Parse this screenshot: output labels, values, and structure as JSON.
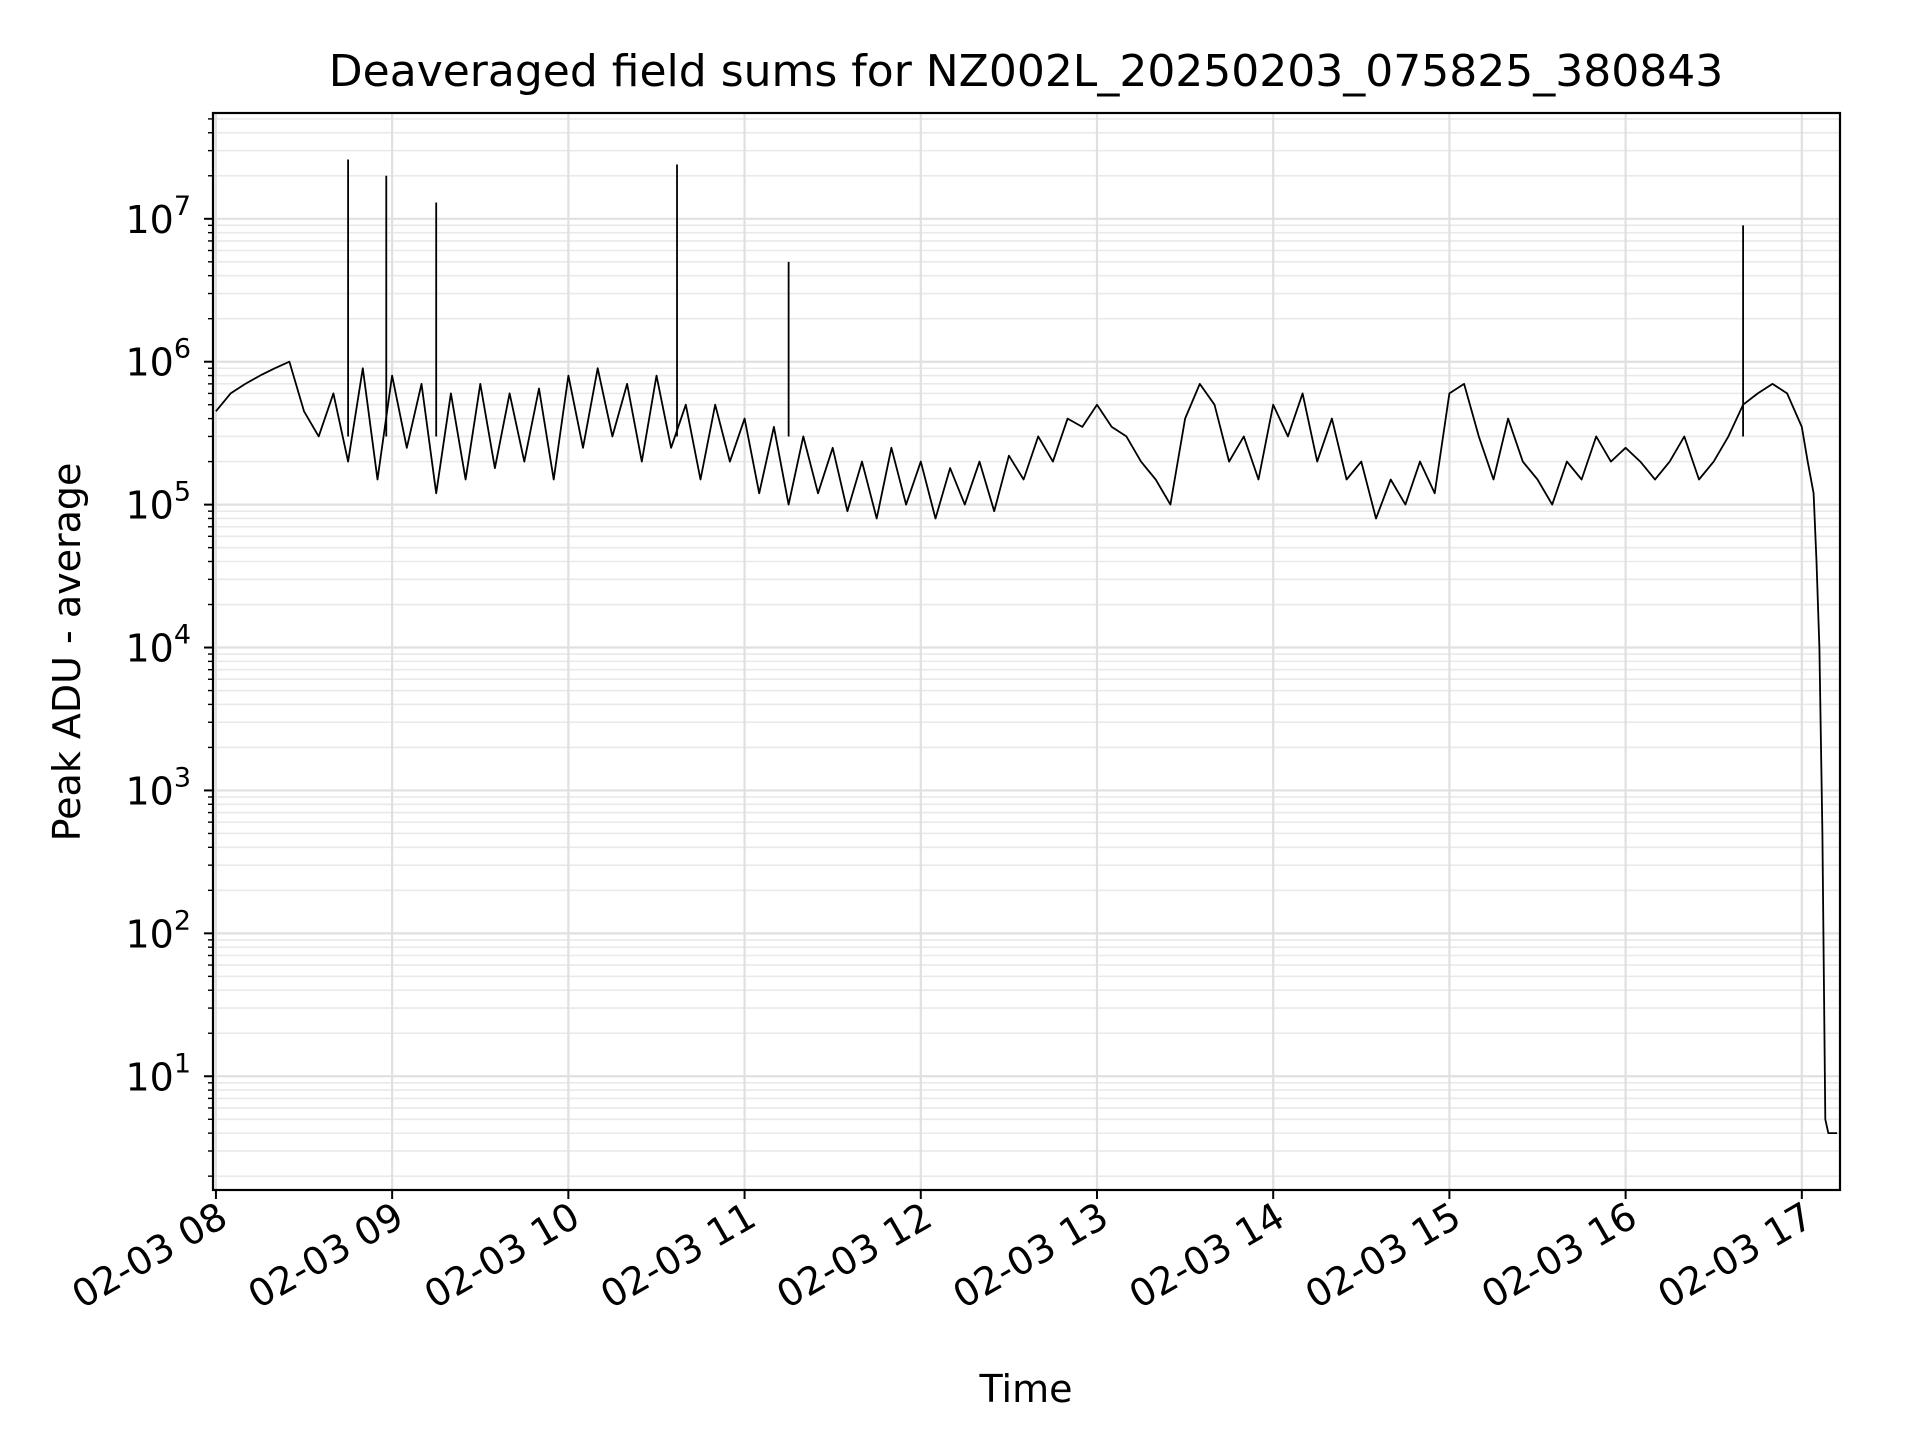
{
  "chart_data": {
    "type": "line",
    "title": "Deaveraged field sums for NZ002L_20250203_075825_380843",
    "xlabel": "Time",
    "ylabel": "Peak ADU - average",
    "yscale": "log",
    "ylim": [
      1.6,
      55000000
    ],
    "xlim": [
      "2025-02-03 07:59",
      "2025-02-03 17:13"
    ],
    "grid": true,
    "x_ticks": [
      "02-03 08",
      "02-03 09",
      "02-03 10",
      "02-03 11",
      "02-03 12",
      "02-03 13",
      "02-03 14",
      "02-03 15",
      "02-03 16",
      "02-03 17"
    ],
    "y_ticks": [
      {
        "base": "10",
        "exp": "1",
        "value": 10
      },
      {
        "base": "10",
        "exp": "2",
        "value": 100
      },
      {
        "base": "10",
        "exp": "3",
        "value": 1000
      },
      {
        "base": "10",
        "exp": "4",
        "value": 10000
      },
      {
        "base": "10",
        "exp": "5",
        "value": 100000
      },
      {
        "base": "10",
        "exp": "6",
        "value": 1000000
      },
      {
        "base": "10",
        "exp": "7",
        "value": 10000000
      }
    ],
    "line_color": "#000000",
    "series": [
      {
        "x": [
          "02-03 08:00",
          "02-03 08:05",
          "02-03 08:10",
          "02-03 08:15",
          "02-03 08:20",
          "02-03 08:25",
          "02-03 08:30",
          "02-03 08:35",
          "02-03 08:40",
          "02-03 08:45",
          "02-03 08:50",
          "02-03 08:55",
          "02-03 09:00",
          "02-03 09:05",
          "02-03 09:10",
          "02-03 09:15",
          "02-03 09:20",
          "02-03 09:25",
          "02-03 09:30",
          "02-03 09:35",
          "02-03 09:40",
          "02-03 09:45",
          "02-03 09:50",
          "02-03 09:55",
          "02-03 10:00",
          "02-03 10:05",
          "02-03 10:10",
          "02-03 10:15",
          "02-03 10:20",
          "02-03 10:25",
          "02-03 10:30",
          "02-03 10:35",
          "02-03 10:40",
          "02-03 10:45",
          "02-03 10:50",
          "02-03 10:55",
          "02-03 11:00",
          "02-03 11:05",
          "02-03 11:10",
          "02-03 11:15",
          "02-03 11:20",
          "02-03 11:25",
          "02-03 11:30",
          "02-03 11:35",
          "02-03 11:40",
          "02-03 11:45",
          "02-03 11:50",
          "02-03 11:55",
          "02-03 12:00",
          "02-03 12:05",
          "02-03 12:10",
          "02-03 12:15",
          "02-03 12:20",
          "02-03 12:25",
          "02-03 12:30",
          "02-03 12:35",
          "02-03 12:40",
          "02-03 12:45",
          "02-03 12:50",
          "02-03 12:55",
          "02-03 13:00",
          "02-03 13:05",
          "02-03 13:10",
          "02-03 13:15",
          "02-03 13:20",
          "02-03 13:25",
          "02-03 13:30",
          "02-03 13:35",
          "02-03 13:40",
          "02-03 13:45",
          "02-03 13:50",
          "02-03 13:55",
          "02-03 14:00",
          "02-03 14:05",
          "02-03 14:10",
          "02-03 14:15",
          "02-03 14:20",
          "02-03 14:25",
          "02-03 14:30",
          "02-03 14:35",
          "02-03 14:40",
          "02-03 14:45",
          "02-03 14:50",
          "02-03 14:55",
          "02-03 15:00",
          "02-03 15:05",
          "02-03 15:10",
          "02-03 15:15",
          "02-03 15:20",
          "02-03 15:25",
          "02-03 15:30",
          "02-03 15:35",
          "02-03 15:40",
          "02-03 15:45",
          "02-03 15:50",
          "02-03 15:55",
          "02-03 16:00",
          "02-03 16:05",
          "02-03 16:10",
          "02-03 16:15",
          "02-03 16:20",
          "02-03 16:25",
          "02-03 16:30",
          "02-03 16:35",
          "02-03 16:40",
          "02-03 16:45",
          "02-03 16:50",
          "02-03 16:55",
          "02-03 17:00",
          "02-03 17:02",
          "02-03 17:04",
          "02-03 17:05",
          "02-03 17:06",
          "02-03 17:07",
          "02-03 17:08",
          "02-03 17:09",
          "02-03 17:10",
          "02-03 17:12"
        ],
        "values": [
          450000,
          600000,
          700000,
          800000,
          900000,
          1000000,
          450000,
          300000,
          600000,
          200000,
          900000,
          150000,
          800000,
          250000,
          700000,
          120000,
          600000,
          150000,
          700000,
          180000,
          600000,
          200000,
          650000,
          150000,
          800000,
          250000,
          900000,
          300000,
          700000,
          200000,
          800000,
          250000,
          500000,
          150000,
          500000,
          200000,
          400000,
          120000,
          350000,
          100000,
          300000,
          120000,
          250000,
          90000,
          200000,
          80000,
          250000,
          100000,
          200000,
          80000,
          180000,
          100000,
          200000,
          90000,
          220000,
          150000,
          300000,
          200000,
          400000,
          350000,
          500000,
          350000,
          300000,
          200000,
          150000,
          100000,
          400000,
          700000,
          500000,
          200000,
          300000,
          150000,
          500000,
          300000,
          600000,
          200000,
          400000,
          150000,
          200000,
          80000,
          150000,
          100000,
          200000,
          120000,
          600000,
          700000,
          300000,
          150000,
          400000,
          200000,
          150000,
          100000,
          200000,
          150000,
          300000,
          200000,
          250000,
          200000,
          150000,
          200000,
          300000,
          150000,
          200000,
          300000,
          500000,
          600000,
          700000,
          600000,
          350000,
          200000,
          120000,
          40000,
          10000,
          500,
          5,
          4,
          4,
          4
        ],
        "spikes": [
          {
            "x": "02-03 08:45",
            "value": 26000000
          },
          {
            "x": "02-03 08:58",
            "value": 20000000
          },
          {
            "x": "02-03 09:15",
            "value": 13000000
          },
          {
            "x": "02-03 10:37",
            "value": 24000000
          },
          {
            "x": "02-03 11:15",
            "value": 5000000
          },
          {
            "x": "02-03 16:40",
            "value": 9000000
          }
        ]
      }
    ]
  }
}
